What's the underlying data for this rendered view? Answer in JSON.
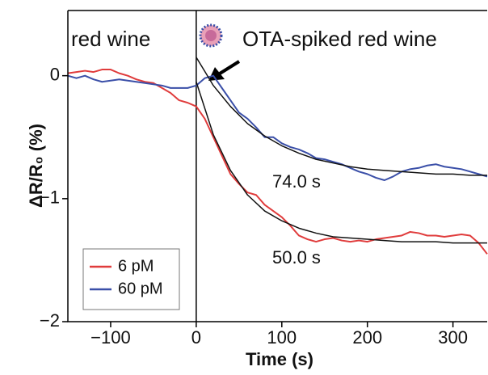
{
  "chart_data": {
    "type": "line",
    "xlabel": "Time (s)",
    "ylabel": "ΔR/R₀ (%)",
    "xlim": [
      -150,
      340
    ],
    "ylim": [
      -2,
      0.53
    ],
    "xticks": [
      {
        "value": -100,
        "label": "−100"
      },
      0,
      100,
      200,
      300
    ],
    "yticks": [
      {
        "value": -2,
        "label": "−2"
      },
      {
        "value": -1,
        "label": "−1"
      },
      0
    ],
    "vline_x": 0,
    "x": [
      -150,
      -140,
      -130,
      -120,
      -110,
      -100,
      -90,
      -80,
      -70,
      -60,
      -50,
      -40,
      -30,
      -20,
      -10,
      0,
      10,
      20,
      30,
      40,
      50,
      60,
      70,
      80,
      90,
      100,
      110,
      120,
      130,
      140,
      150,
      160,
      170,
      180,
      190,
      200,
      210,
      220,
      230,
      240,
      250,
      260,
      270,
      280,
      290,
      300,
      310,
      320,
      330,
      340
    ],
    "series": [
      {
        "name": "6 pM",
        "color": "#e03c3c",
        "values": [
          0.02,
          0.03,
          0.04,
          0.03,
          0.05,
          0.05,
          0.02,
          0.0,
          -0.03,
          -0.05,
          -0.06,
          -0.1,
          -0.14,
          -0.2,
          -0.22,
          -0.25,
          -0.35,
          -0.5,
          -0.65,
          -0.8,
          -0.88,
          -0.95,
          -0.97,
          -1.05,
          -1.1,
          -1.15,
          -1.22,
          -1.3,
          -1.33,
          -1.35,
          -1.33,
          -1.32,
          -1.34,
          -1.35,
          -1.34,
          -1.35,
          -1.33,
          -1.32,
          -1.31,
          -1.3,
          -1.27,
          -1.28,
          -1.3,
          -1.3,
          -1.31,
          -1.3,
          -1.29,
          -1.3,
          -1.36,
          -1.45
        ]
      },
      {
        "name": "60 pM",
        "color": "#3a4fa8",
        "values": [
          0.0,
          -0.02,
          0.0,
          -0.03,
          -0.05,
          -0.04,
          -0.03,
          -0.04,
          -0.05,
          -0.06,
          -0.07,
          -0.08,
          -0.1,
          -0.1,
          -0.1,
          -0.08,
          -0.02,
          0.0,
          -0.1,
          -0.2,
          -0.3,
          -0.35,
          -0.42,
          -0.5,
          -0.5,
          -0.55,
          -0.58,
          -0.6,
          -0.63,
          -0.67,
          -0.68,
          -0.7,
          -0.72,
          -0.75,
          -0.78,
          -0.8,
          -0.83,
          -0.85,
          -0.82,
          -0.78,
          -0.76,
          -0.75,
          -0.73,
          -0.72,
          -0.74,
          -0.75,
          -0.76,
          -0.78,
          -0.8,
          -0.82
        ]
      }
    ],
    "fits": [
      {
        "color": "#111111",
        "x": [
          0,
          20,
          40,
          60,
          80,
          100,
          120,
          140,
          160,
          180,
          200,
          220,
          240,
          260,
          280,
          300,
          320,
          340
        ],
        "values": [
          0.15,
          -0.08,
          -0.25,
          -0.39,
          -0.49,
          -0.57,
          -0.63,
          -0.68,
          -0.71,
          -0.74,
          -0.76,
          -0.77,
          -0.78,
          -0.79,
          -0.8,
          -0.8,
          -0.81,
          -0.81
        ]
      },
      {
        "color": "#111111",
        "x": [
          0,
          20,
          40,
          60,
          80,
          100,
          120,
          140,
          160,
          180,
          200,
          220,
          240,
          260,
          280,
          300,
          320,
          340
        ],
        "values": [
          -0.05,
          -0.48,
          -0.77,
          -0.97,
          -1.1,
          -1.18,
          -1.24,
          -1.28,
          -1.31,
          -1.32,
          -1.33,
          -1.34,
          -1.35,
          -1.35,
          -1.35,
          -1.36,
          -1.36,
          -1.36
        ]
      }
    ],
    "annotations": [
      "red wine",
      "OTA-spiked red wine",
      "74.0 s",
      "50.0 s"
    ]
  }
}
